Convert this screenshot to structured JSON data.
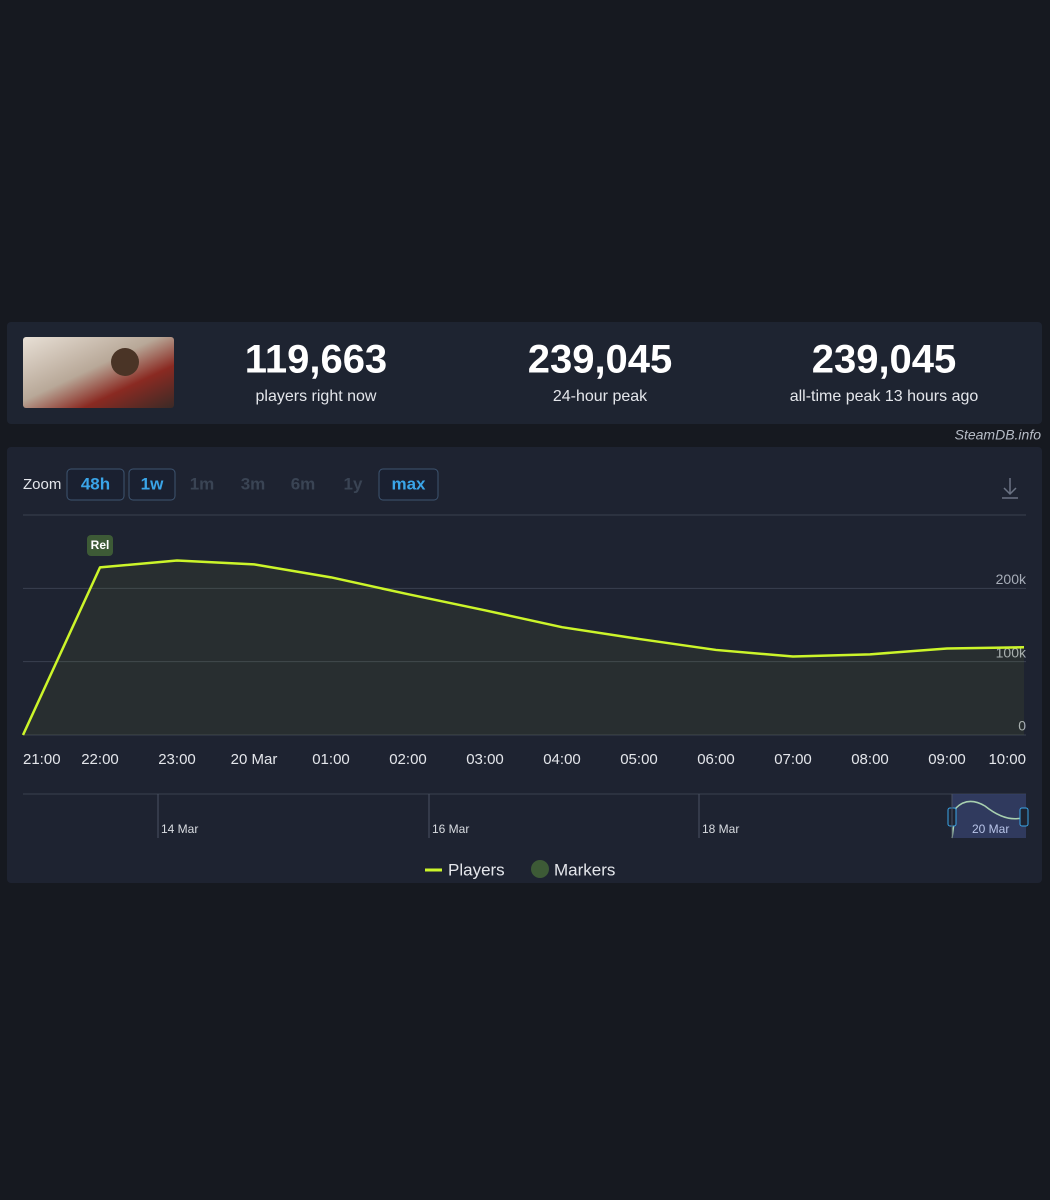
{
  "stats": [
    {
      "value": "119,663",
      "label": "players right now"
    },
    {
      "value": "239,045",
      "label": "24-hour peak"
    },
    {
      "value": "239,045",
      "label": "all-time peak 13 hours ago"
    }
  ],
  "watermark": "SteamDB.info",
  "zoom": {
    "label": "Zoom",
    "options": [
      {
        "label": "48h",
        "active": true
      },
      {
        "label": "1w",
        "active": true
      },
      {
        "label": "1m",
        "active": false
      },
      {
        "label": "3m",
        "active": false
      },
      {
        "label": "6m",
        "active": false
      },
      {
        "label": "1y",
        "active": false
      },
      {
        "label": "max",
        "active": true
      }
    ]
  },
  "chart_data": {
    "type": "line",
    "categories": [
      "21:00",
      "22:00",
      "23:00",
      "20 Mar",
      "01:00",
      "02:00",
      "03:00",
      "04:00",
      "05:00",
      "06:00",
      "07:00",
      "08:00",
      "09:00",
      "10:00"
    ],
    "series": [
      {
        "name": "Players",
        "color": "#ccf52a",
        "values": [
          0,
          228600,
          238000,
          232700,
          215000,
          192000,
          170000,
          147000,
          131000,
          116000,
          107000,
          110000,
          118000,
          119663
        ]
      }
    ],
    "markers_legend": {
      "name": "Markers",
      "color": "#3d5a36"
    },
    "annotations": [
      {
        "text": "Rel",
        "at": "22:00"
      }
    ],
    "ylim": [
      0,
      300000
    ],
    "yticks": [
      0,
      {
        "value": 100000,
        "label": "100k"
      },
      {
        "value": 200000,
        "label": "200k"
      },
      {
        "value": 300000,
        "label": ""
      }
    ],
    "grid": true
  },
  "navigator": {
    "labels": [
      "14 Mar",
      "16 Mar",
      "18 Mar",
      "20 Mar"
    ]
  }
}
